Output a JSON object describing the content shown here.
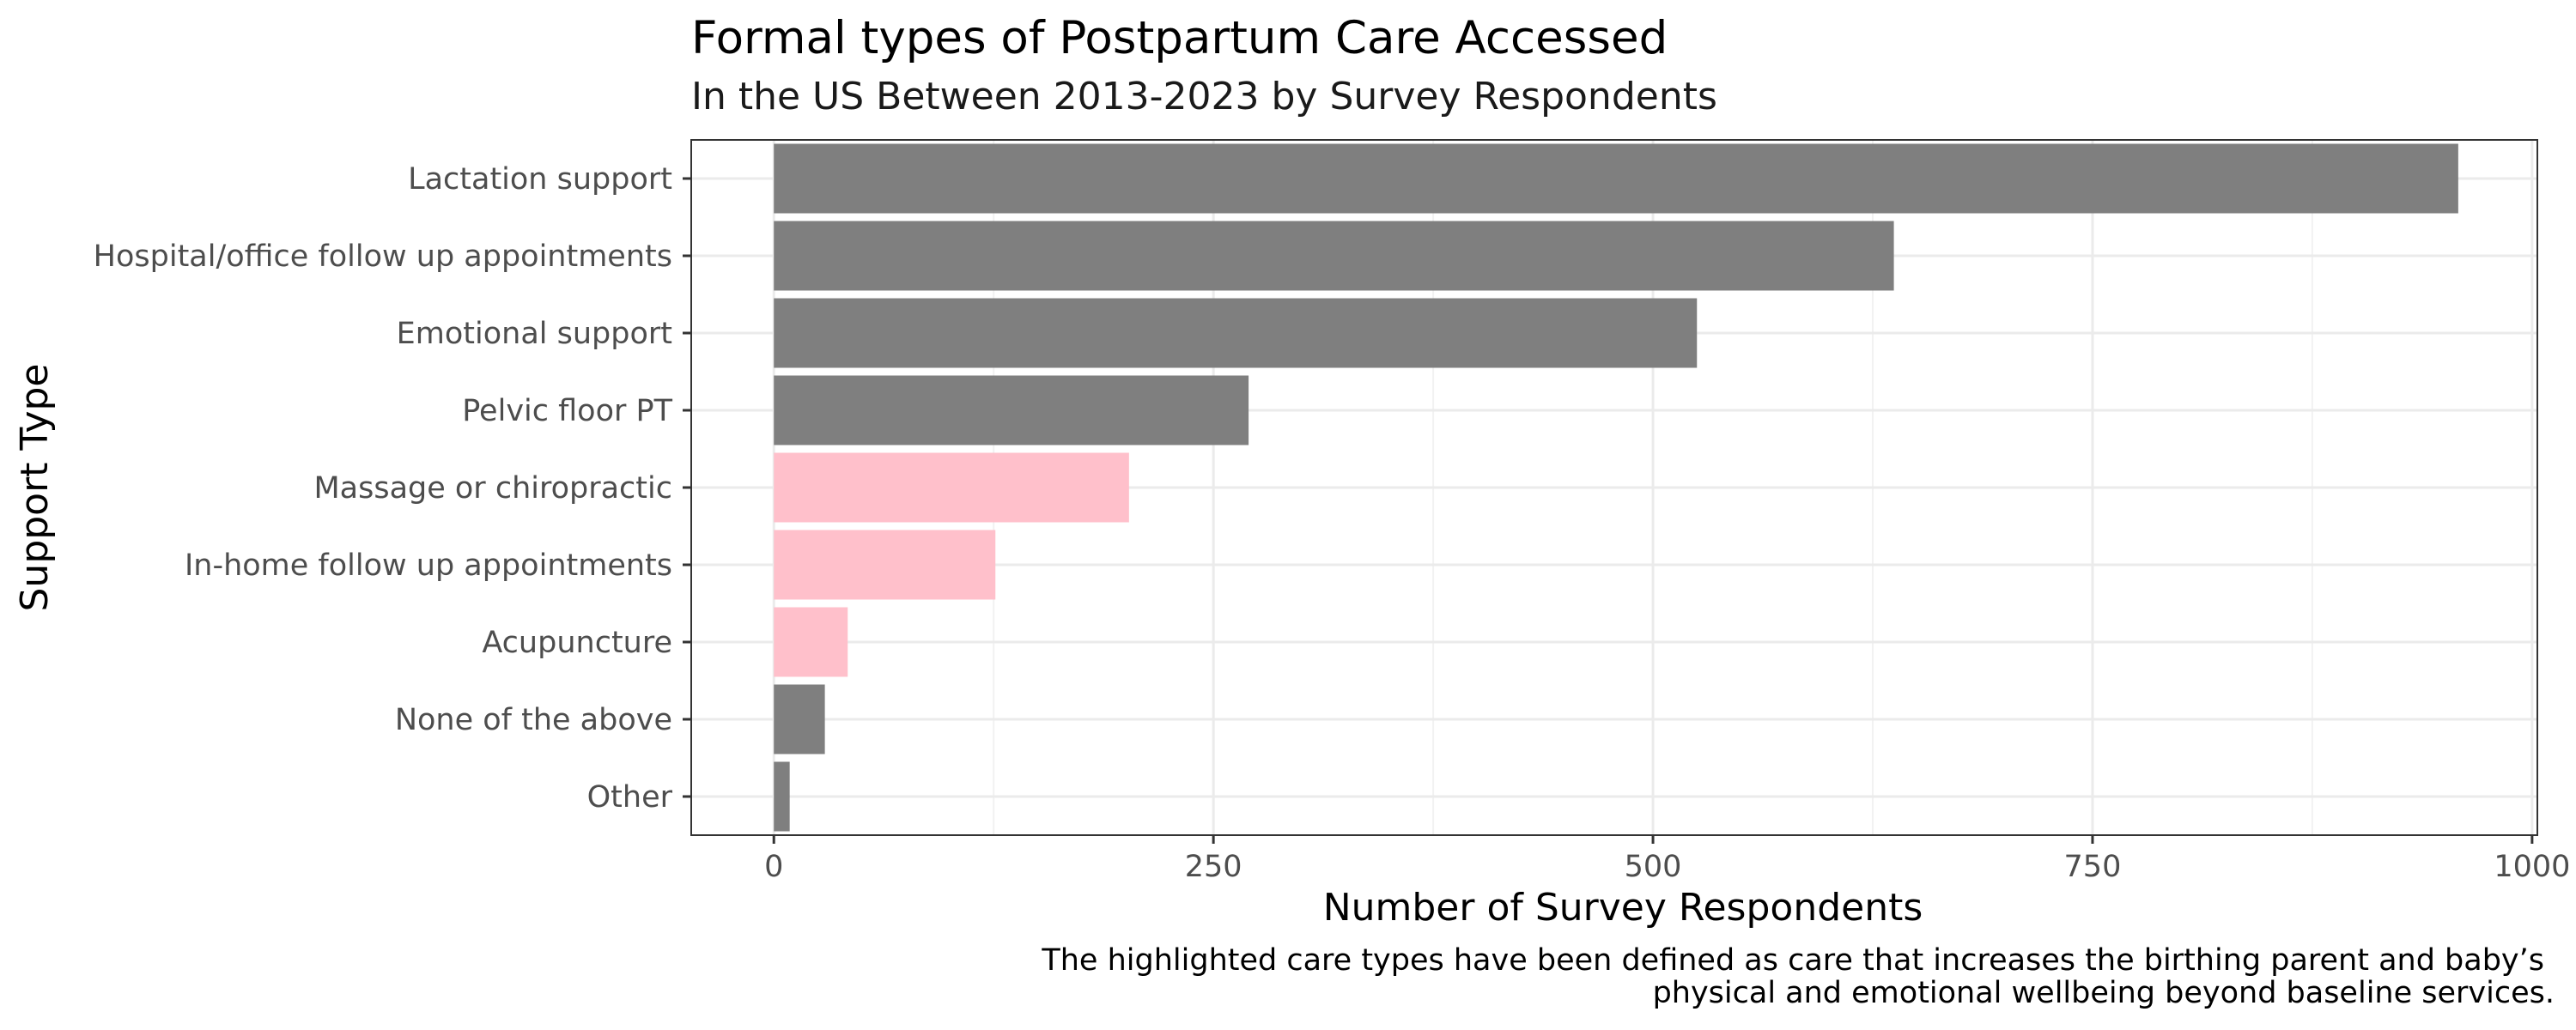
{
  "chart_data": {
    "type": "bar",
    "orientation": "horizontal",
    "title": "Formal types of Postpartum Care Accessed",
    "subtitle": "In the US Between 2013-2023 by Survey Respondents",
    "xlabel": "Number of Survey Respondents",
    "ylabel": "Support Type",
    "caption_lines": [
      "The highlighted care types have been defined as care that increases the birthing parent and baby’s",
      "physical and emotional wellbeing beyond baseline services."
    ],
    "categories": [
      "Lactation support",
      "Hospital/office follow up appointments",
      "Emotional support",
      "Pelvic floor PT",
      "Massage or chiropractic",
      "In-home follow up appointments",
      "Acupuncture",
      "None of the above",
      "Other"
    ],
    "values": [
      958,
      637,
      525,
      270,
      202,
      126,
      42,
      29,
      9
    ],
    "highlighted": [
      false,
      false,
      false,
      false,
      true,
      true,
      true,
      false,
      false
    ],
    "xlim": [
      -47,
      1003
    ],
    "xticks": [
      0,
      250,
      500,
      750,
      1000
    ],
    "xtick_labels": [
      "0",
      "250",
      "500",
      "750",
      "1000"
    ],
    "grid": true,
    "legend": "none",
    "colors": {
      "default_bar": "#7f7f7f",
      "highlight_bar": "#ffc0cb",
      "grid_major": "#ebebeb",
      "grid_minor": "#f2f2f2",
      "panel_border": "#333333",
      "tick_mark": "#333333"
    }
  }
}
